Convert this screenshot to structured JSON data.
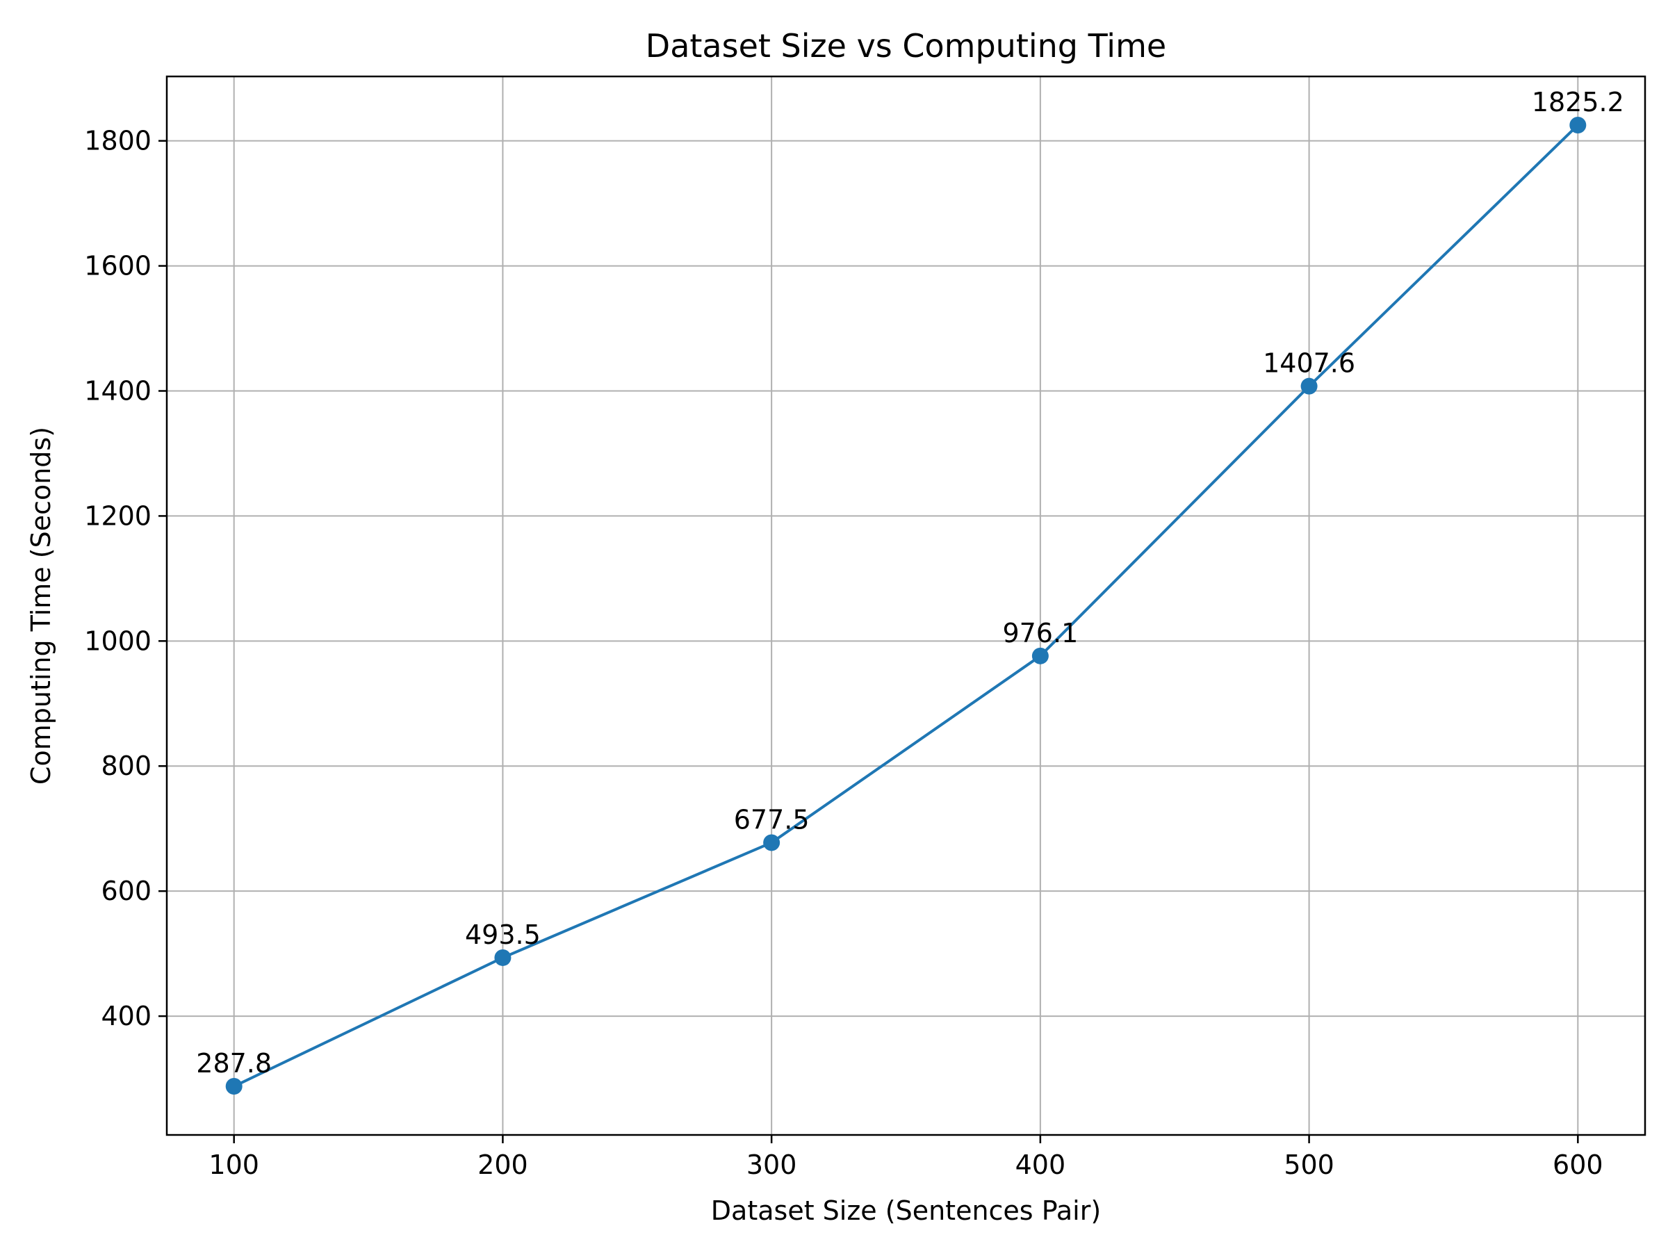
{
  "chart_data": {
    "type": "line",
    "title": "Dataset Size vs Computing Time",
    "xlabel": "Dataset Size (Sentences Pair)",
    "ylabel": "Computing Time (Seconds)",
    "x": [
      100,
      200,
      300,
      400,
      500,
      600
    ],
    "series": [
      {
        "values": [
          287.8,
          493.5,
          677.5,
          976.1,
          1407.6,
          1825.2
        ],
        "labels": [
          "287.8",
          "493.5",
          "677.5",
          "976.1",
          "1407.6",
          "1825.2"
        ],
        "color": "#1f77b4",
        "marker": "circle"
      }
    ],
    "xlim": [
      75,
      625
    ],
    "ylim": [
      210,
      1903
    ],
    "xticks": [
      100,
      200,
      300,
      400,
      500,
      600
    ],
    "xtick_labels": [
      "100",
      "200",
      "300",
      "400",
      "500",
      "600"
    ],
    "yticks": [
      400,
      600,
      800,
      1000,
      1200,
      1400,
      1600,
      1800
    ],
    "ytick_labels": [
      "400",
      "600",
      "800",
      "1000",
      "1200",
      "1400",
      "1600",
      "1800"
    ],
    "grid": true,
    "legend": false
  }
}
